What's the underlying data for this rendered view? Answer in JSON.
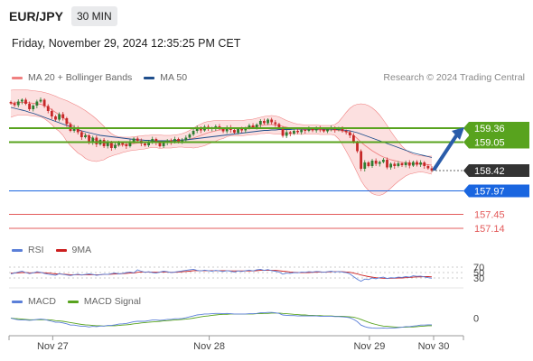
{
  "header": {
    "symbol": "EUR/JPY",
    "interval": "30 MIN",
    "datetime": "Friday, November 29, 2024 12:35:25 PM CET",
    "credit": "Research © 2024 Trading Central"
  },
  "colors": {
    "bollinger": "#f08080",
    "bollinger_fill": "#fbdada",
    "ma50": "#1f4e8c",
    "candle_up": "#2e7d32",
    "candle_down": "#c62828",
    "resistance": "#58a31e",
    "current_price": "#333333",
    "pivot": "#1a66e0",
    "support": "#e35b5b",
    "rsi": "#5b7fd8",
    "rsi_ma": "#cc1f1f",
    "macd": "#5b7fd8",
    "macd_signal": "#58a31e",
    "arrow": "#2a5caa"
  },
  "chart_data": [
    {
      "type": "candlestick",
      "title": "EUR/JPY",
      "legend": [
        {
          "name": "MA 20 + Bollinger Bands",
          "color": "#f08080"
        },
        {
          "name": "MA 50",
          "color": "#1f4e8c"
        }
      ],
      "x_ticks": [
        "Nov 27",
        "Nov 28",
        "Nov 29",
        "Nov 30"
      ],
      "y_range": [
        157.0,
        160.2
      ],
      "close_series": [
        159.91,
        159.87,
        159.95,
        159.99,
        159.9,
        159.78,
        159.86,
        159.95,
        159.99,
        159.85,
        159.74,
        159.62,
        159.55,
        159.67,
        159.58,
        159.45,
        159.3,
        159.38,
        159.27,
        159.16,
        159.2,
        159.04,
        159.15,
        159.0,
        159.1,
        158.96,
        159.05,
        158.92,
        158.99,
        159.03,
        159.0,
        158.96,
        159.06,
        159.13,
        159.08,
        159.02,
        158.98,
        159.06,
        159.12,
        159.04,
        158.96,
        159.03,
        159.09,
        159.05,
        159.12,
        159.06,
        159.1,
        159.15,
        159.22,
        159.3,
        159.37,
        159.31,
        159.39,
        159.34,
        159.36,
        159.4,
        159.35,
        159.29,
        159.38,
        159.32,
        159.26,
        159.34,
        159.31,
        159.36,
        159.42,
        159.38,
        159.44,
        159.52,
        159.47,
        159.55,
        159.49,
        159.45,
        159.36,
        159.19,
        159.27,
        159.24,
        159.3,
        159.27,
        159.32,
        159.3,
        159.35,
        159.31,
        159.36,
        159.33,
        159.29,
        159.34,
        159.37,
        159.32,
        159.35,
        159.3,
        159.27,
        159.2,
        159.05,
        158.85,
        158.46,
        158.6,
        158.52,
        158.64,
        158.57,
        158.61,
        158.66,
        158.49,
        158.57,
        158.52,
        158.58,
        158.54,
        158.6,
        158.53,
        158.61,
        158.55,
        158.6,
        158.52,
        158.47,
        158.42
      ],
      "ma20": [
        159.9,
        159.92,
        159.93,
        159.93,
        159.93,
        159.92,
        159.91,
        159.9,
        159.89,
        159.86,
        159.82,
        159.77,
        159.71,
        159.66,
        159.6,
        159.52,
        159.45,
        159.39,
        159.33,
        159.28,
        159.22,
        159.17,
        159.13,
        159.09,
        159.06,
        159.03,
        159.01,
        158.99,
        158.98,
        158.98,
        158.99,
        159.0,
        159.01,
        159.02,
        159.03,
        159.04,
        159.05,
        159.06,
        159.07,
        159.07,
        159.06,
        159.06,
        159.06,
        159.06,
        159.07,
        159.08,
        159.09,
        159.1,
        159.12,
        159.14,
        159.17,
        159.2,
        159.23,
        159.26,
        159.28,
        159.3,
        159.32,
        159.33,
        159.35,
        159.36,
        159.36,
        159.36,
        159.36,
        159.37,
        159.38,
        159.39,
        159.4,
        159.42,
        159.43,
        159.44,
        159.44,
        159.43,
        159.42,
        159.4,
        159.38,
        159.36,
        159.35,
        159.34,
        159.33,
        159.33,
        159.33,
        159.33,
        159.33,
        159.32,
        159.32,
        159.32,
        159.32,
        159.32,
        159.31,
        159.3,
        159.28,
        159.25,
        159.2,
        159.13,
        159.05,
        158.98,
        158.92,
        158.86,
        158.81,
        158.76,
        158.72,
        158.69,
        158.66,
        158.64,
        158.62,
        158.6,
        158.59,
        158.58,
        158.57,
        158.57,
        158.57,
        158.56,
        158.55,
        158.54
      ],
      "bollinger_upper": [
        160.2,
        160.21,
        160.21,
        160.21,
        160.21,
        160.2,
        160.19,
        160.18,
        160.17,
        160.15,
        160.13,
        160.1,
        160.07,
        160.03,
        160.0,
        159.97,
        159.93,
        159.89,
        159.85,
        159.8,
        159.75,
        159.69,
        159.63,
        159.56,
        159.48,
        159.4,
        159.31,
        159.24,
        159.19,
        159.17,
        159.16,
        159.16,
        159.16,
        159.17,
        159.18,
        159.19,
        159.2,
        159.2,
        159.21,
        159.21,
        159.21,
        159.2,
        159.2,
        159.2,
        159.21,
        159.22,
        159.24,
        159.27,
        159.31,
        159.36,
        159.41,
        159.45,
        159.49,
        159.51,
        159.52,
        159.53,
        159.53,
        159.53,
        159.53,
        159.53,
        159.53,
        159.53,
        159.53,
        159.54,
        159.55,
        159.56,
        159.58,
        159.6,
        159.62,
        159.63,
        159.64,
        159.63,
        159.61,
        159.57,
        159.53,
        159.5,
        159.47,
        159.45,
        159.44,
        159.43,
        159.43,
        159.43,
        159.43,
        159.42,
        159.42,
        159.42,
        159.42,
        159.44,
        159.5,
        159.6,
        159.71,
        159.8,
        159.86,
        159.89,
        159.9,
        159.89,
        159.86,
        159.81,
        159.74,
        159.65,
        159.54,
        159.42,
        159.29,
        159.17,
        159.06,
        158.96,
        158.88,
        158.82,
        158.78,
        158.76,
        158.75,
        158.74,
        158.74,
        158.74
      ],
      "bollinger_lower": [
        159.6,
        159.63,
        159.65,
        159.65,
        159.65,
        159.64,
        159.63,
        159.62,
        159.61,
        159.57,
        159.51,
        159.44,
        159.35,
        159.29,
        159.2,
        159.07,
        158.97,
        158.89,
        158.81,
        158.76,
        158.69,
        158.65,
        158.63,
        158.62,
        158.64,
        158.66,
        158.71,
        158.74,
        158.77,
        158.79,
        158.82,
        158.84,
        158.86,
        158.87,
        158.88,
        158.89,
        158.9,
        158.92,
        158.93,
        158.93,
        158.91,
        158.92,
        158.92,
        158.92,
        158.93,
        158.94,
        158.94,
        158.93,
        158.93,
        158.92,
        158.93,
        158.95,
        158.97,
        159.01,
        159.04,
        159.07,
        159.11,
        159.13,
        159.17,
        159.19,
        159.19,
        159.19,
        159.19,
        159.2,
        159.21,
        159.22,
        159.22,
        159.24,
        159.24,
        159.25,
        159.24,
        159.23,
        159.23,
        159.23,
        159.23,
        159.22,
        159.23,
        159.23,
        159.22,
        159.23,
        159.23,
        159.23,
        159.23,
        159.22,
        159.22,
        159.22,
        159.22,
        159.2,
        159.12,
        159.0,
        158.85,
        158.7,
        158.54,
        158.37,
        158.2,
        158.07,
        157.98,
        157.91,
        157.88,
        157.87,
        157.9,
        157.96,
        158.03,
        158.11,
        158.18,
        158.24,
        158.3,
        158.34,
        158.36,
        158.38,
        158.39,
        158.38,
        158.36,
        158.34
      ],
      "ma50": [
        159.82,
        159.8,
        159.78,
        159.76,
        159.74,
        159.71,
        159.69,
        159.66,
        159.63,
        159.6,
        159.57,
        159.54,
        159.51,
        159.48,
        159.45,
        159.42,
        159.39,
        159.36,
        159.33,
        159.3,
        159.28,
        159.26,
        159.24,
        159.22,
        159.2,
        159.19,
        159.18,
        159.17,
        159.16,
        159.15,
        159.14,
        159.13,
        159.12,
        159.11,
        159.1,
        159.1,
        159.09,
        159.09,
        159.08,
        159.08,
        159.08,
        159.08,
        159.08,
        159.08,
        159.09,
        159.09,
        159.1,
        159.1,
        159.11,
        159.12,
        159.13,
        159.14,
        159.15,
        159.16,
        159.17,
        159.18,
        159.19,
        159.2,
        159.21,
        159.22,
        159.23,
        159.24,
        159.25,
        159.26,
        159.27,
        159.28,
        159.29,
        159.3,
        159.31,
        159.31,
        159.32,
        159.32,
        159.33,
        159.33,
        159.33,
        159.33,
        159.34,
        159.34,
        159.34,
        159.34,
        159.34,
        159.34,
        159.34,
        159.34,
        159.34,
        159.34,
        159.34,
        159.33,
        159.33,
        159.32,
        159.31,
        159.3,
        159.28,
        159.26,
        159.23,
        159.2,
        159.17,
        159.14,
        159.11,
        159.08,
        159.05,
        159.02,
        158.99,
        158.96,
        158.93,
        158.9,
        158.87,
        158.84,
        158.81,
        158.79,
        158.77,
        158.75,
        158.73,
        158.71
      ],
      "levels": [
        {
          "label": "159.36",
          "value": 159.36,
          "kind": "resistance"
        },
        {
          "label": "159.05",
          "value": 159.05,
          "kind": "resistance"
        },
        {
          "label": "158.42",
          "value": 158.42,
          "kind": "current"
        },
        {
          "label": "157.97",
          "value": 157.97,
          "kind": "pivot"
        },
        {
          "label": "157.45",
          "value": 157.45,
          "kind": "support"
        },
        {
          "label": "157.14",
          "value": 157.14,
          "kind": "support"
        }
      ]
    },
    {
      "type": "line",
      "title": "RSI",
      "legend": [
        {
          "name": "RSI",
          "color": "#5b7fd8"
        },
        {
          "name": "9MA",
          "color": "#cc1f1f"
        }
      ],
      "y_ticks": [
        "70",
        "50",
        "30"
      ],
      "y_range": [
        0,
        100
      ],
      "rsi": [
        45,
        48,
        52,
        55,
        50,
        46,
        49,
        53,
        51,
        47,
        44,
        42,
        40,
        46,
        43,
        41,
        39,
        42,
        44,
        41,
        43,
        45,
        43,
        40,
        42,
        44,
        43,
        46,
        48,
        45,
        47,
        50,
        52,
        49,
        60,
        55,
        51,
        53,
        50,
        48,
        52,
        55,
        53,
        50,
        52,
        54,
        56,
        58,
        60,
        62,
        58,
        56,
        59,
        57,
        55,
        58,
        56,
        54,
        57,
        55,
        52,
        56,
        54,
        57,
        59,
        56,
        60,
        62,
        58,
        61,
        57,
        55,
        52,
        44,
        48,
        47,
        50,
        49,
        52,
        51,
        53,
        52,
        54,
        53,
        51,
        53,
        55,
        52,
        54,
        52,
        50,
        45,
        35,
        25,
        18,
        26,
        24,
        30,
        27,
        31,
        33,
        28,
        31,
        30,
        33,
        32,
        35,
        33,
        38,
        36,
        37,
        34,
        31,
        29
      ],
      "rsi_ma": [
        48,
        48,
        49,
        50,
        50,
        49,
        49,
        50,
        50,
        49,
        48,
        47,
        45,
        45,
        44,
        43,
        42,
        42,
        42,
        41,
        42,
        42,
        42,
        42,
        42,
        43,
        43,
        44,
        45,
        45,
        46,
        47,
        48,
        48,
        51,
        52,
        52,
        52,
        52,
        51,
        52,
        52,
        52,
        51,
        51,
        52,
        53,
        54,
        55,
        57,
        57,
        57,
        57,
        57,
        57,
        57,
        57,
        57,
        57,
        56,
        56,
        56,
        56,
        56,
        56,
        56,
        57,
        58,
        58,
        58,
        58,
        58,
        57,
        55,
        54,
        52,
        51,
        50,
        50,
        50,
        50,
        51,
        51,
        52,
        52,
        52,
        53,
        53,
        53,
        53,
        52,
        51,
        48,
        45,
        41,
        38,
        35,
        33,
        31,
        30,
        29,
        28,
        29,
        29,
        30,
        30,
        31,
        32,
        33,
        34,
        34,
        35,
        35,
        34
      ]
    },
    {
      "type": "line",
      "title": "MACD",
      "legend": [
        {
          "name": "MACD",
          "color": "#5b7fd8"
        },
        {
          "name": "MACD Signal",
          "color": "#58a31e"
        }
      ],
      "y_ticks": [
        "0"
      ],
      "y_range": [
        -0.5,
        0.5
      ],
      "macd": [
        0.0,
        -0.03,
        -0.05,
        -0.06,
        -0.06,
        -0.07,
        -0.06,
        -0.04,
        -0.03,
        -0.04,
        -0.07,
        -0.1,
        -0.13,
        -0.13,
        -0.15,
        -0.18,
        -0.22,
        -0.22,
        -0.24,
        -0.26,
        -0.26,
        -0.28,
        -0.26,
        -0.27,
        -0.25,
        -0.25,
        -0.23,
        -0.23,
        -0.21,
        -0.19,
        -0.18,
        -0.17,
        -0.14,
        -0.11,
        -0.1,
        -0.1,
        -0.1,
        -0.08,
        -0.06,
        -0.06,
        -0.07,
        -0.06,
        -0.04,
        -0.04,
        -0.02,
        -0.02,
        -0.01,
        0.01,
        0.04,
        0.07,
        0.1,
        0.11,
        0.13,
        0.13,
        0.14,
        0.15,
        0.15,
        0.14,
        0.15,
        0.14,
        0.13,
        0.13,
        0.13,
        0.13,
        0.14,
        0.14,
        0.15,
        0.17,
        0.17,
        0.18,
        0.18,
        0.17,
        0.15,
        0.1,
        0.09,
        0.08,
        0.08,
        0.07,
        0.07,
        0.07,
        0.07,
        0.07,
        0.07,
        0.06,
        0.06,
        0.06,
        0.06,
        0.05,
        0.05,
        0.04,
        0.03,
        0.01,
        -0.04,
        -0.11,
        -0.22,
        -0.27,
        -0.3,
        -0.31,
        -0.32,
        -0.32,
        -0.31,
        -0.32,
        -0.31,
        -0.31,
        -0.3,
        -0.29,
        -0.27,
        -0.27,
        -0.25,
        -0.24,
        -0.22,
        -0.22,
        -0.21,
        -0.21
      ],
      "macd_signal": [
        0.0,
        -0.01,
        -0.02,
        -0.03,
        -0.04,
        -0.05,
        -0.05,
        -0.05,
        -0.05,
        -0.05,
        -0.05,
        -0.06,
        -0.08,
        -0.09,
        -0.1,
        -0.12,
        -0.14,
        -0.16,
        -0.18,
        -0.2,
        -0.21,
        -0.22,
        -0.23,
        -0.24,
        -0.24,
        -0.25,
        -0.24,
        -0.24,
        -0.24,
        -0.23,
        -0.22,
        -0.21,
        -0.2,
        -0.18,
        -0.17,
        -0.15,
        -0.14,
        -0.13,
        -0.12,
        -0.11,
        -0.1,
        -0.09,
        -0.08,
        -0.07,
        -0.06,
        -0.05,
        -0.04,
        -0.03,
        -0.02,
        0.0,
        0.02,
        0.04,
        0.06,
        0.07,
        0.09,
        0.1,
        0.11,
        0.12,
        0.12,
        0.13,
        0.13,
        0.13,
        0.13,
        0.13,
        0.13,
        0.13,
        0.14,
        0.14,
        0.15,
        0.15,
        0.16,
        0.16,
        0.16,
        0.15,
        0.14,
        0.13,
        0.12,
        0.11,
        0.1,
        0.1,
        0.09,
        0.09,
        0.08,
        0.08,
        0.07,
        0.07,
        0.07,
        0.06,
        0.06,
        0.06,
        0.05,
        0.04,
        0.03,
        0.0,
        -0.04,
        -0.09,
        -0.13,
        -0.17,
        -0.2,
        -0.23,
        -0.25,
        -0.26,
        -0.27,
        -0.28,
        -0.29,
        -0.29,
        -0.29,
        -0.28,
        -0.28,
        -0.27,
        -0.26,
        -0.25,
        -0.24,
        -0.24
      ]
    }
  ]
}
